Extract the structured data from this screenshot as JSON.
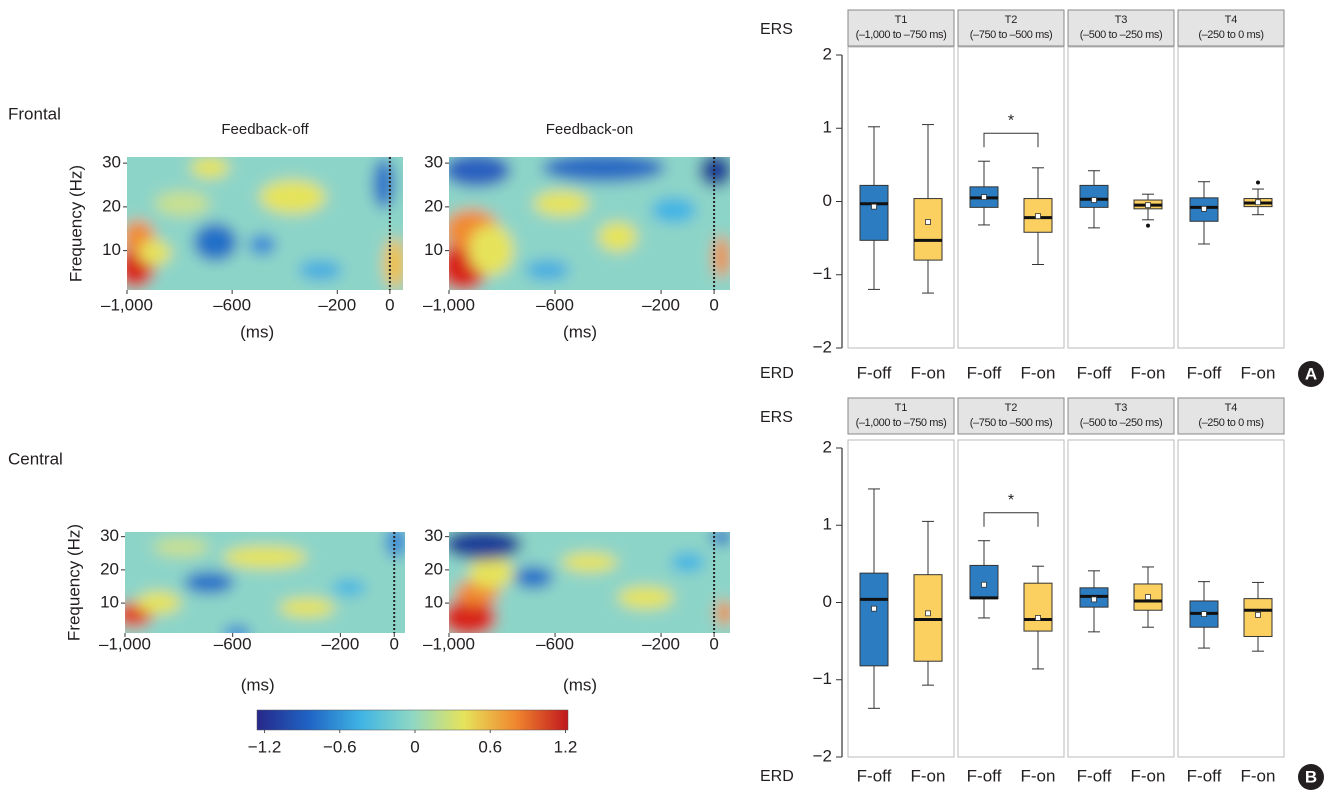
{
  "chart_data": [
    {
      "type": "heatmap",
      "row_label": "Frontal",
      "title": "Feedback-off",
      "ylabel": "Frequency (Hz)",
      "xlabel": "(ms)",
      "xlim": [
        -1000,
        50
      ],
      "ylim": [
        1,
        31.4
      ],
      "xticks": [
        {
          "value": -1000,
          "label": "–1,000"
        },
        {
          "value": -600,
          "label": "–600"
        },
        {
          "value": -200,
          "label": "–200"
        },
        0
      ],
      "yticks": [
        10,
        20,
        30
      ],
      "vline": 0
    },
    {
      "type": "heatmap",
      "title": "Feedback-on",
      "xlabel": "(ms)",
      "xlim": [
        -1000,
        60
      ],
      "ylim": [
        1,
        31.4
      ],
      "xticks": [
        {
          "value": -1000,
          "label": "–1,000"
        },
        {
          "value": -600,
          "label": "–600"
        },
        {
          "value": -200,
          "label": "–200"
        },
        0
      ],
      "yticks": [
        10,
        20,
        30
      ],
      "vline": 0
    },
    {
      "type": "heatmap",
      "row_label": "Central",
      "ylabel": "Frequency (Hz)",
      "xlabel": "(ms)",
      "xlim": [
        -1000,
        40
      ],
      "ylim": [
        1,
        31.4
      ],
      "xticks": [
        {
          "value": -1000,
          "label": "–1,000"
        },
        {
          "value": -600,
          "label": "–600"
        },
        {
          "value": -200,
          "label": "–200"
        },
        0
      ],
      "yticks": [
        10,
        20,
        30
      ],
      "vline": 0
    },
    {
      "type": "heatmap",
      "xlabel": "(ms)",
      "xlim": [
        -1000,
        60
      ],
      "ylim": [
        1,
        31.4
      ],
      "xticks": [
        {
          "value": -1000,
          "label": "–1,000"
        },
        {
          "value": -600,
          "label": "–600"
        },
        {
          "value": -200,
          "label": "–200"
        },
        0
      ],
      "yticks": [
        10,
        20,
        30
      ],
      "vline": 0
    },
    {
      "type": "colorbar",
      "clim": [
        -1.26,
        1.22
      ],
      "colors": [
        "#27288a",
        "#1f64c4",
        "#3fb4e4",
        "#8fd8c4",
        "#e6e35a",
        "#f0862e",
        "#c0161e"
      ],
      "ticks": [
        {
          "value": -1.2,
          "label": "−1.2"
        },
        {
          "value": -0.6,
          "label": "−0.6"
        },
        0,
        0.6,
        1.2
      ]
    },
    {
      "type": "box",
      "top_label": "ERS",
      "bottom_label": "ERD",
      "panel_letter": "A",
      "ylim": [
        -2,
        2
      ],
      "yticks": [
        {
          "value": -2,
          "label": "−2"
        },
        {
          "value": -1,
          "label": "−1"
        },
        0,
        1,
        2
      ],
      "panels": [
        {
          "title": "T1",
          "subtitle": "(–1,000 to –750 ms)",
          "boxes": [
            {
              "name": "F-off",
              "color": "#2b7cc0",
              "whisker_low": -1.2,
              "q1": -0.53,
              "median": -0.03,
              "q3": 0.22,
              "whisker_high": 1.02,
              "mean": -0.07
            },
            {
              "name": "F-on",
              "color": "#fcd060",
              "whisker_low": -1.25,
              "q1": -0.8,
              "median": -0.53,
              "q3": 0.04,
              "whisker_high": 1.05,
              "mean": -0.28
            }
          ]
        },
        {
          "title": "T2",
          "subtitle": "(–750 to –500 ms)",
          "annotation": "*",
          "boxes": [
            {
              "name": "F-off",
              "color": "#2b7cc0",
              "whisker_low": -0.32,
              "q1": -0.08,
              "median": 0.05,
              "q3": 0.2,
              "whisker_high": 0.55,
              "mean": 0.06
            },
            {
              "name": "F-on",
              "color": "#fcd060",
              "whisker_low": -0.86,
              "q1": -0.42,
              "median": -0.22,
              "q3": 0.04,
              "whisker_high": 0.46,
              "mean": -0.2
            }
          ]
        },
        {
          "title": "T3",
          "subtitle": "(–500 to –250 ms)",
          "boxes": [
            {
              "name": "F-off",
              "color": "#2b7cc0",
              "whisker_low": -0.36,
              "q1": -0.08,
              "median": 0.03,
              "q3": 0.22,
              "whisker_high": 0.42,
              "mean": 0.02
            },
            {
              "name": "F-on",
              "color": "#fcd060",
              "whisker_low": -0.25,
              "q1": -0.1,
              "median": -0.05,
              "q3": 0.02,
              "whisker_high": 0.1,
              "mean": -0.05,
              "outliers": [
                -0.33
              ]
            }
          ]
        },
        {
          "title": "T4",
          "subtitle": "(–250 to 0 ms)",
          "boxes": [
            {
              "name": "F-off",
              "color": "#2b7cc0",
              "whisker_low": -0.58,
              "q1": -0.27,
              "median": -0.08,
              "q3": 0.05,
              "whisker_high": 0.27,
              "mean": -0.1
            },
            {
              "name": "F-on",
              "color": "#fcd060",
              "whisker_low": -0.18,
              "q1": -0.07,
              "median": -0.02,
              "q3": 0.04,
              "whisker_high": 0.17,
              "mean": -0.01,
              "outliers": [
                0.26
              ]
            }
          ]
        }
      ]
    },
    {
      "type": "box",
      "top_label": "ERS",
      "bottom_label": "ERD",
      "panel_letter": "B",
      "ylim": [
        -2,
        2
      ],
      "yticks": [
        {
          "value": -2,
          "label": "−2"
        },
        {
          "value": -1,
          "label": "−1"
        },
        0,
        1,
        2
      ],
      "panels": [
        {
          "title": "T1",
          "subtitle": "(–1,000 to –750 ms)",
          "boxes": [
            {
              "name": "F-off",
              "color": "#2b7cc0",
              "whisker_low": -1.37,
              "q1": -0.82,
              "median": 0.04,
              "q3": 0.38,
              "whisker_high": 1.47,
              "mean": -0.08
            },
            {
              "name": "F-on",
              "color": "#fcd060",
              "whisker_low": -1.07,
              "q1": -0.76,
              "median": -0.22,
              "q3": 0.36,
              "whisker_high": 1.05,
              "mean": -0.14
            }
          ]
        },
        {
          "title": "T2",
          "subtitle": "(–750 to –500 ms)",
          "annotation": "*",
          "boxes": [
            {
              "name": "F-off",
              "color": "#2b7cc0",
              "whisker_low": -0.2,
              "q1": 0.05,
              "median": 0.06,
              "q3": 0.48,
              "whisker_high": 0.8,
              "mean": 0.23
            },
            {
              "name": "F-on",
              "color": "#fcd060",
              "whisker_low": -0.86,
              "q1": -0.37,
              "median": -0.22,
              "q3": 0.25,
              "whisker_high": 0.47,
              "mean": -0.2
            }
          ]
        },
        {
          "title": "T3",
          "subtitle": "(–500 to –250 ms)",
          "boxes": [
            {
              "name": "F-off",
              "color": "#2b7cc0",
              "whisker_low": -0.38,
              "q1": -0.06,
              "median": 0.08,
              "q3": 0.19,
              "whisker_high": 0.41,
              "mean": 0.04
            },
            {
              "name": "F-on",
              "color": "#fcd060",
              "whisker_low": -0.32,
              "q1": -0.1,
              "median": 0.02,
              "q3": 0.24,
              "whisker_high": 0.46,
              "mean": 0.07
            }
          ]
        },
        {
          "title": "T4",
          "subtitle": "(–250 to 0 ms)",
          "boxes": [
            {
              "name": "F-off",
              "color": "#2b7cc0",
              "whisker_low": -0.59,
              "q1": -0.32,
              "median": -0.14,
              "q3": 0.02,
              "whisker_high": 0.27,
              "mean": -0.15
            },
            {
              "name": "F-on",
              "color": "#fcd060",
              "whisker_low": -0.63,
              "q1": -0.44,
              "median": -0.1,
              "q3": 0.05,
              "whisker_high": 0.26,
              "mean": -0.16
            }
          ]
        }
      ]
    }
  ]
}
